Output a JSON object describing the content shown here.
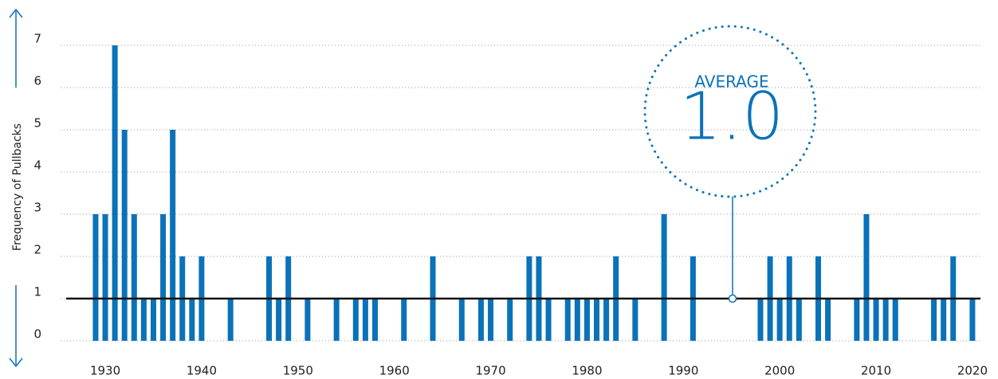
{
  "chart_data": {
    "type": "bar",
    "y_axis_label": "Frequency of Pullbacks",
    "color": "#0a72b9",
    "x": [
      1929,
      1930,
      1931,
      1932,
      1933,
      1934,
      1935,
      1936,
      1937,
      1938,
      1939,
      1940,
      1943,
      1947,
      1948,
      1949,
      1951,
      1954,
      1956,
      1957,
      1958,
      1961,
      1964,
      1967,
      1969,
      1970,
      1972,
      1974,
      1975,
      1976,
      1978,
      1979,
      1980,
      1981,
      1982,
      1983,
      1985,
      1988,
      1991,
      1998,
      1999,
      2000,
      2001,
      2002,
      2004,
      2005,
      2008,
      2009,
      2010,
      2011,
      2012,
      2016,
      2017,
      2018,
      2020
    ],
    "values": [
      3,
      3,
      7,
      5,
      3,
      1,
      1,
      3,
      5,
      2,
      1,
      2,
      1,
      2,
      1,
      2,
      1,
      1,
      1,
      1,
      1,
      1,
      2,
      1,
      1,
      1,
      1,
      2,
      2,
      1,
      1,
      1,
      1,
      1,
      1,
      2,
      1,
      3,
      2,
      1,
      2,
      1,
      2,
      1,
      2,
      1,
      1,
      3,
      1,
      1,
      1,
      1,
      1,
      2,
      1
    ],
    "xlim": [
      1925,
      2021
    ],
    "xticks": [
      1930,
      1940,
      1950,
      1960,
      1970,
      1980,
      1990,
      2000,
      2010,
      2020
    ],
    "ylim": [
      0,
      7
    ],
    "yticks": [
      0,
      1,
      2,
      3,
      4,
      5,
      6,
      7
    ],
    "grid": true,
    "average": 1,
    "average_label": "AVERAGE",
    "average_value_label": "1.0"
  }
}
